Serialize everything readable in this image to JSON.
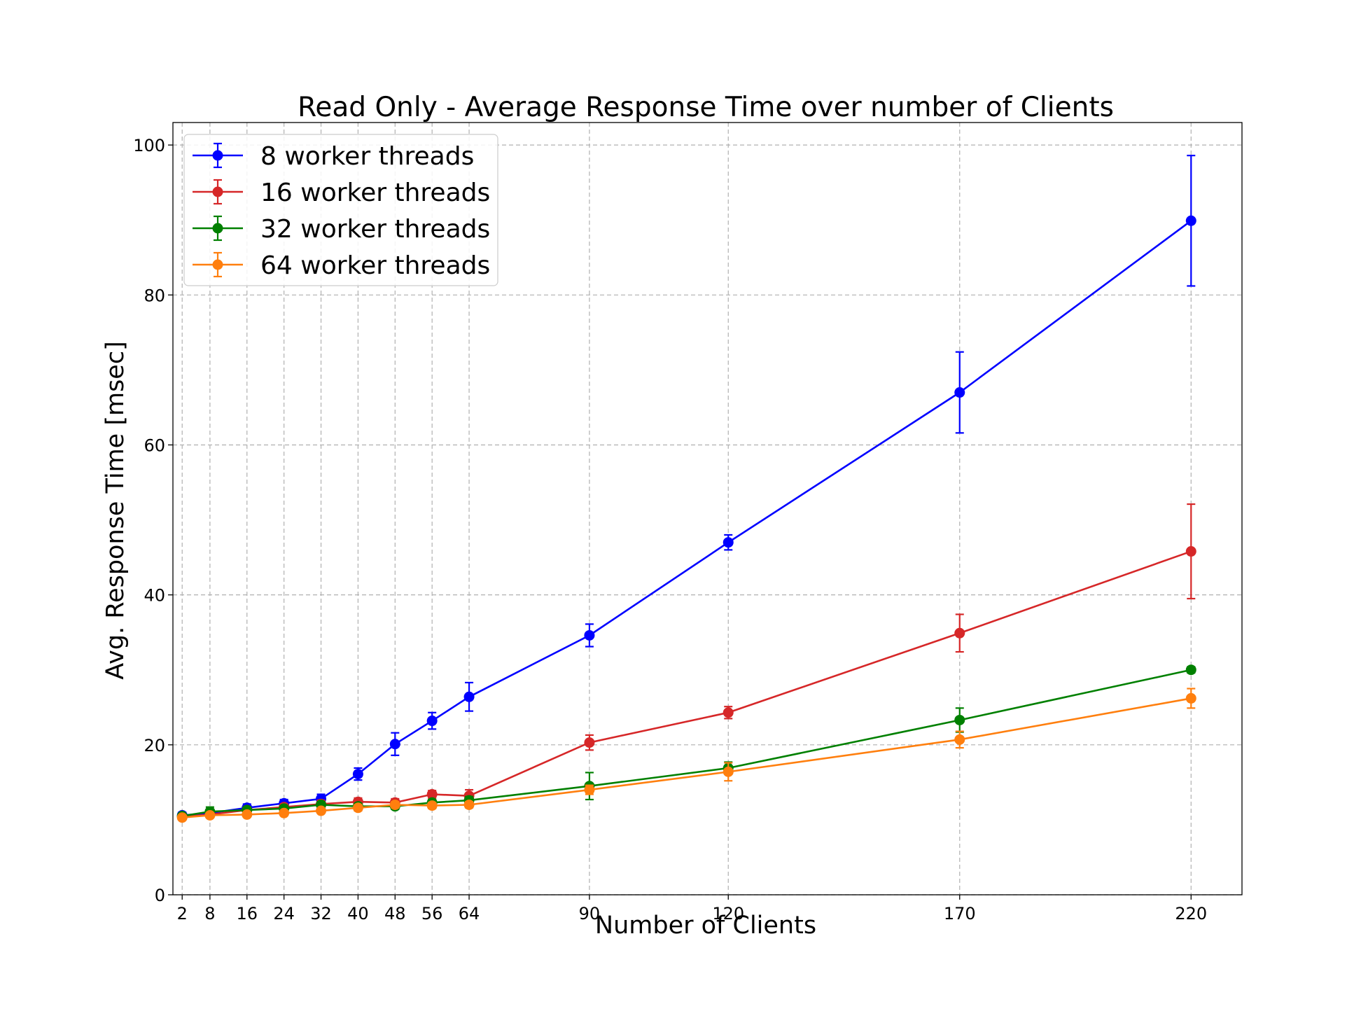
{
  "chart_data": {
    "type": "line",
    "title": "Read Only - Average Response Time over number of Clients",
    "xlabel": "Number of Clients",
    "ylabel": "Avg. Response Time [msec]",
    "x": [
      2,
      8,
      16,
      24,
      32,
      40,
      48,
      56,
      64,
      90,
      120,
      170,
      220
    ],
    "x_tick_labels": [
      "2",
      "8",
      "16",
      "24",
      "32",
      "40",
      "48",
      "56",
      "64",
      "90",
      "120",
      "170",
      "220"
    ],
    "xlim": [
      0,
      231
    ],
    "ylim": [
      0,
      103
    ],
    "y_ticks": [
      0,
      20,
      40,
      60,
      80,
      100
    ],
    "y_tick_labels": [
      "0",
      "20",
      "40",
      "60",
      "80",
      "100"
    ],
    "grid": true,
    "legend_position": "top-left",
    "series": [
      {
        "name": "8 worker threads",
        "color": "#0000ff",
        "values": [
          10.6,
          10.9,
          11.6,
          12.2,
          12.8,
          16.1,
          20.1,
          23.2,
          26.4,
          34.6,
          47.0,
          67.0,
          89.9
        ],
        "errors": [
          0.4,
          0.5,
          0.5,
          0.5,
          0.6,
          0.8,
          1.5,
          1.1,
          1.9,
          1.5,
          1.0,
          5.4,
          8.7
        ]
      },
      {
        "name": "16 worker threads",
        "color": "#d62728",
        "values": [
          10.4,
          10.7,
          11.3,
          11.7,
          12.1,
          12.4,
          12.3,
          13.4,
          13.2,
          20.3,
          24.3,
          34.9,
          45.8
        ],
        "errors": [
          0.3,
          0.4,
          0.4,
          0.4,
          0.5,
          0.5,
          0.5,
          0.5,
          0.8,
          1.0,
          0.8,
          2.5,
          6.3
        ]
      },
      {
        "name": "32 worker threads",
        "color": "#008000",
        "values": [
          10.5,
          11.1,
          11.3,
          11.5,
          12.0,
          11.8,
          11.8,
          12.3,
          12.6,
          14.5,
          16.9,
          23.3,
          30.0
        ],
        "errors": [
          0.3,
          0.6,
          0.4,
          0.4,
          0.4,
          0.4,
          0.4,
          0.4,
          0.5,
          1.8,
          0.8,
          1.6,
          0.4
        ]
      },
      {
        "name": "64 worker threads",
        "color": "#ff7f0e",
        "values": [
          10.3,
          10.6,
          10.7,
          10.9,
          11.2,
          11.6,
          12.0,
          11.9,
          12.0,
          14.0,
          16.4,
          20.7,
          26.2
        ],
        "errors": [
          0.3,
          0.3,
          0.3,
          0.3,
          0.3,
          0.4,
          0.4,
          0.4,
          0.4,
          0.6,
          1.2,
          1.1,
          1.3
        ]
      }
    ]
  }
}
